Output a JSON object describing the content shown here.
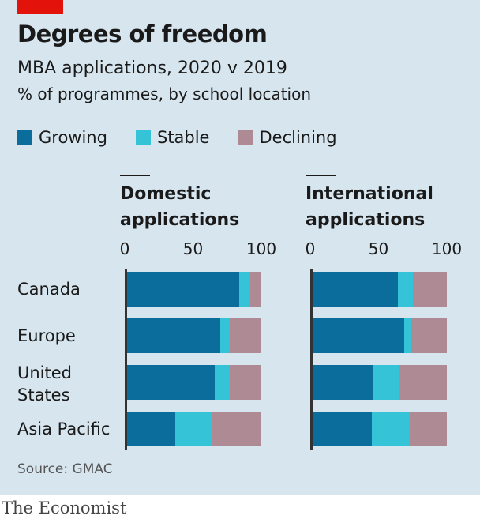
{
  "header": {
    "title": "Degrees of freedom",
    "subtitle": "MBA applications, 2020 v 2019",
    "unit": "% of programmes, by school location"
  },
  "legend": {
    "growing": "Growing",
    "stable": "Stable",
    "declining": "Declining"
  },
  "colors": {
    "growing": "#0a6d9c",
    "stable": "#35c4d7",
    "declining": "#ad8a94",
    "background": "#d6e5ee",
    "brand_red": "#e3120b"
  },
  "footer": {
    "source": "Source: GMAC",
    "brand": "The Economist"
  },
  "chart_data": [
    {
      "type": "bar",
      "orientation": "horizontal",
      "stacked": true,
      "title": "Domestic applications",
      "categories": [
        "Canada",
        "Europe",
        "United States",
        "Asia Pacific"
      ],
      "xlim": [
        0,
        100
      ],
      "xticks": [
        "0",
        "50",
        "100"
      ],
      "series": [
        {
          "name": "Growing",
          "values": [
            84,
            70,
            66,
            37
          ]
        },
        {
          "name": "Stable",
          "values": [
            8,
            7,
            11,
            27
          ]
        },
        {
          "name": "Declining",
          "values": [
            8,
            23,
            23,
            36
          ]
        }
      ]
    },
    {
      "type": "bar",
      "orientation": "horizontal",
      "stacked": true,
      "title": "International applications",
      "categories": [
        "Canada",
        "Europe",
        "United States",
        "Asia Pacific"
      ],
      "xlim": [
        0,
        100
      ],
      "xticks": [
        "0",
        "50",
        "100"
      ],
      "series": [
        {
          "name": "Growing",
          "values": [
            64,
            69,
            46,
            45
          ]
        },
        {
          "name": "Stable",
          "values": [
            11,
            5,
            19,
            28
          ]
        },
        {
          "name": "Declining",
          "values": [
            25,
            26,
            35,
            27
          ]
        }
      ]
    }
  ]
}
